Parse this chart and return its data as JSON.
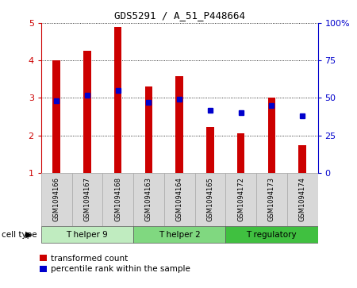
{
  "title": "GDS5291 / A_51_P448664",
  "samples": [
    "GSM1094166",
    "GSM1094167",
    "GSM1094168",
    "GSM1094163",
    "GSM1094164",
    "GSM1094165",
    "GSM1094172",
    "GSM1094173",
    "GSM1094174"
  ],
  "transformed_counts": [
    4.0,
    4.25,
    4.9,
    3.3,
    3.58,
    2.22,
    2.05,
    3.0,
    1.73
  ],
  "percentile_ranks": [
    48,
    52,
    55,
    47,
    49,
    42,
    40,
    45,
    38
  ],
  "cell_types": [
    {
      "label": "T helper 9",
      "start": 0,
      "end": 3,
      "color": "#c0ecc0"
    },
    {
      "label": "T helper 2",
      "start": 3,
      "end": 6,
      "color": "#80d880"
    },
    {
      "label": "T regulatory",
      "start": 6,
      "end": 9,
      "color": "#40c040"
    }
  ],
  "ylim_left": [
    1,
    5
  ],
  "ylim_right": [
    0,
    100
  ],
  "yticks_left": [
    1,
    2,
    3,
    4,
    5
  ],
  "yticks_right": [
    0,
    25,
    50,
    75,
    100
  ],
  "bar_color": "#cc0000",
  "dot_color": "#0000cc",
  "left_axis_color": "#cc0000",
  "right_axis_color": "#0000cc",
  "legend_red_label": "transformed count",
  "legend_blue_label": "percentile rank within the sample",
  "cell_type_label": "cell type",
  "bar_width": 0.25
}
